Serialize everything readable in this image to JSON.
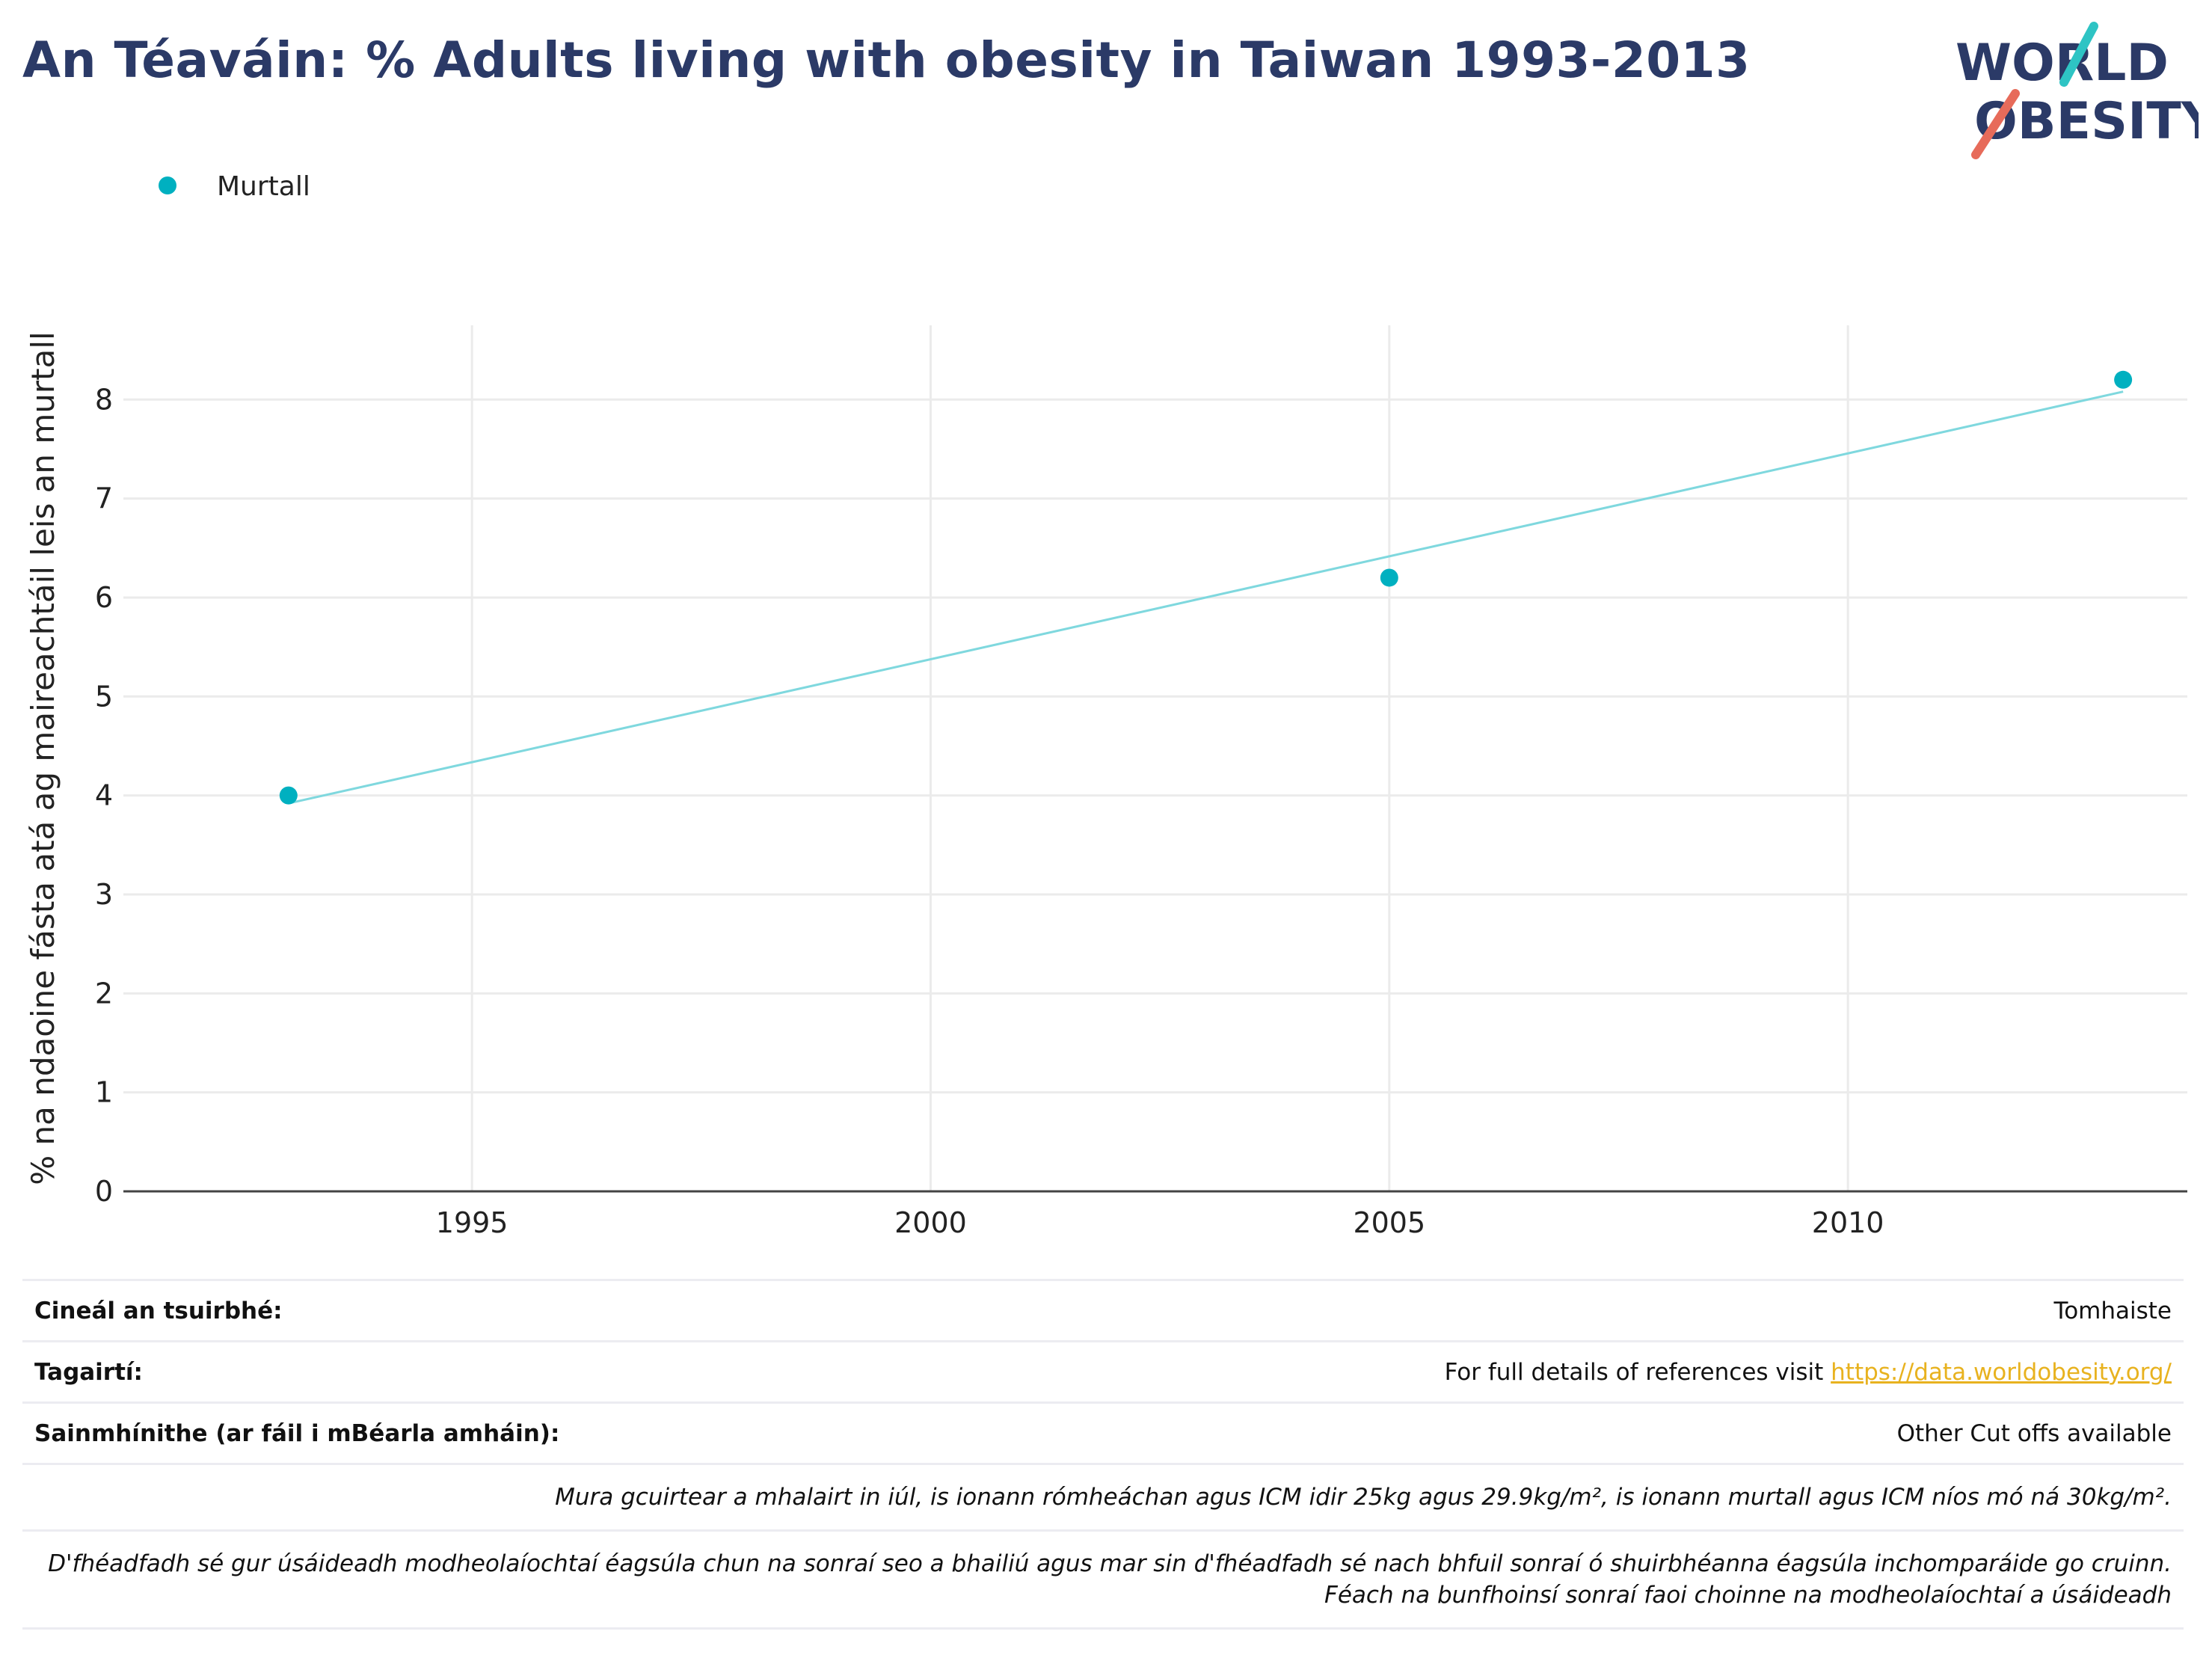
{
  "title": "An Téaváin: % Adults living with obesity in Taiwan 1993-2013",
  "logo": {
    "line1": "WORLD",
    "line2": "OBESITY"
  },
  "colors": {
    "title": "#2b3a67",
    "series": "#00b0c0",
    "trend": "#7fd8de",
    "link": "#e8b21f",
    "logo_teal": "#2ec4c4",
    "logo_red": "#e76b5a"
  },
  "chart_data": {
    "type": "scatter",
    "ylabel": "% na ndaoine fásta atá ag maireachtáil leis an murtall",
    "xlabel": "",
    "xlim": [
      1991.2,
      2013.7
    ],
    "ylim": [
      0,
      8.75
    ],
    "x_ticks": [
      1995,
      2000,
      2005,
      2010
    ],
    "y_ticks": [
      0,
      1,
      2,
      3,
      4,
      5,
      6,
      7,
      8
    ],
    "grid": true,
    "legend_position": "top-left",
    "series": [
      {
        "name": "Murtall",
        "points": [
          {
            "x": 1993,
            "y": 4.0
          },
          {
            "x": 2005,
            "y": 6.2
          },
          {
            "x": 2013,
            "y": 8.2
          }
        ]
      }
    ],
    "trendline": {
      "from": {
        "x": 1993,
        "y": 3.92
      },
      "to": {
        "x": 2013,
        "y": 8.08
      }
    }
  },
  "info": {
    "survey_type_label": "Cineál an tsuirbhé:",
    "survey_type_value": "Tomhaiste",
    "references_label": "Tagairtí:",
    "references_text": "For full details of references visit ",
    "references_link": "https://data.worldobesity.org/",
    "definitions_label": "Sainmhínithe (ar fáil i mBéarla amháin):",
    "definitions_value": "Other Cut offs available",
    "note1": "Mura gcuirtear a mhalairt in iúl, is ionann rómheáchan agus ICM idir 25kg agus 29.9kg/m², is ionann murtall agus ICM níos mó ná 30kg/m².",
    "note2_line1": "D'fhéadfadh sé gur úsáideadh modheolaíochtaí éagsúla chun na sonraí seo a bhailiú agus mar sin d'fhéadfadh sé nach bhfuil sonraí ó shuirbhéanna éagsúla inchomparáide go cruinn.",
    "note2_line2": "Féach na bunfhoinsí sonraí faoi choinne na modheolaíochtaí a úsáideadh"
  }
}
